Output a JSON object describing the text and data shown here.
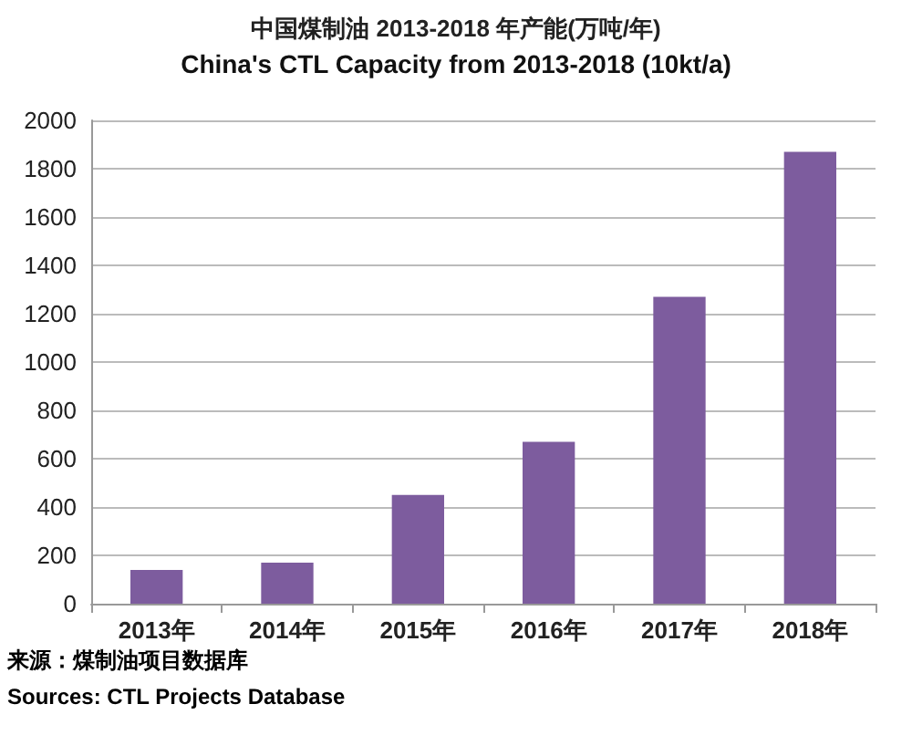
{
  "chart_data": {
    "type": "bar",
    "title": "中国煤制油 2013-2018 年产能(万吨/年)",
    "subtitle": "China's CTL Capacity from 2013-2018 (10kt/a)",
    "categories": [
      "2013年",
      "2014年",
      "2015年",
      "2016年",
      "2017年",
      "2018年"
    ],
    "values": [
      140,
      170,
      450,
      670,
      1270,
      1870
    ],
    "color": "#7d5c9e",
    "ylim": [
      0,
      2000
    ],
    "yticks": [
      0,
      200,
      400,
      600,
      800,
      1000,
      1200,
      1400,
      1600,
      1800,
      2000
    ],
    "grid": "y",
    "annotations": [
      "来源：煤制油项目数据库",
      "Sources: CTL Projects Database"
    ]
  }
}
